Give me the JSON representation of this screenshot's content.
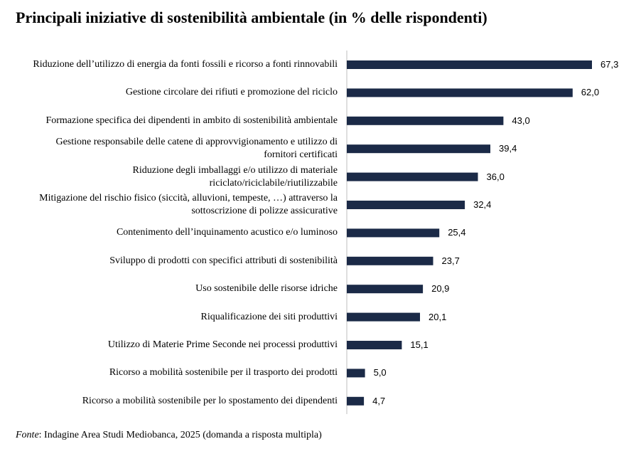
{
  "title": "Principali iniziative di sostenibilità ambientale (in % delle rispondenti)",
  "source": {
    "prefix": "Fonte",
    "text": ": Indagine Area Studi Mediobanca, 2025 (domanda a risposta multipla)"
  },
  "colors": {
    "bar": "#1b2a47",
    "axis": "#bfbfbf"
  },
  "chart_data": {
    "type": "bar",
    "orientation": "horizontal",
    "title": "Principali iniziative di sostenibilità ambientale (in % delle rispondenti)",
    "xlabel": "",
    "ylabel": "",
    "xlim": [
      0,
      70
    ],
    "grid": false,
    "categories": [
      "Riduzione dell’utilizzo di energia da fonti fossili e ricorso a fonti rinnovabili",
      "Gestione circolare dei rifiuti e promozione del riciclo",
      "Formazione specifica dei dipendenti in ambito di sostenibilità ambientale",
      "Gestione responsabile delle catene di approvvigionamento e utilizzo di fornitori certificati",
      "Riduzione degli imballaggi e/o utilizzo di materiale riciclato/riciclabile/riutilizzabile",
      "Mitigazione del rischio fisico (siccità, alluvioni, tempeste, …) attraverso la sottoscrizione di polizze assicurative",
      "Contenimento dell’inquinamento acustico e/o luminoso",
      "Sviluppo di prodotti con specifici attributi di sostenibilità",
      "Uso sostenibile delle risorse idriche",
      "Riqualificazione dei siti produttivi",
      "Utilizzo di Materie Prime Seconde nei processi produttivi",
      "Ricorso a mobilità sostenibile per il trasporto dei prodotti",
      "Ricorso a mobilità sostenibile per lo spostamento dei dipendenti"
    ],
    "values": [
      67.3,
      62.0,
      43.0,
      39.4,
      36.0,
      32.4,
      25.4,
      23.7,
      20.9,
      20.1,
      15.1,
      5.0,
      4.7
    ],
    "value_labels": [
      "67,3",
      "62,0",
      "43,0",
      "39,4",
      "36,0",
      "32,4",
      "25,4",
      "23,7",
      "20,9",
      "20,1",
      "15,1",
      "5,0",
      "4,7"
    ]
  }
}
